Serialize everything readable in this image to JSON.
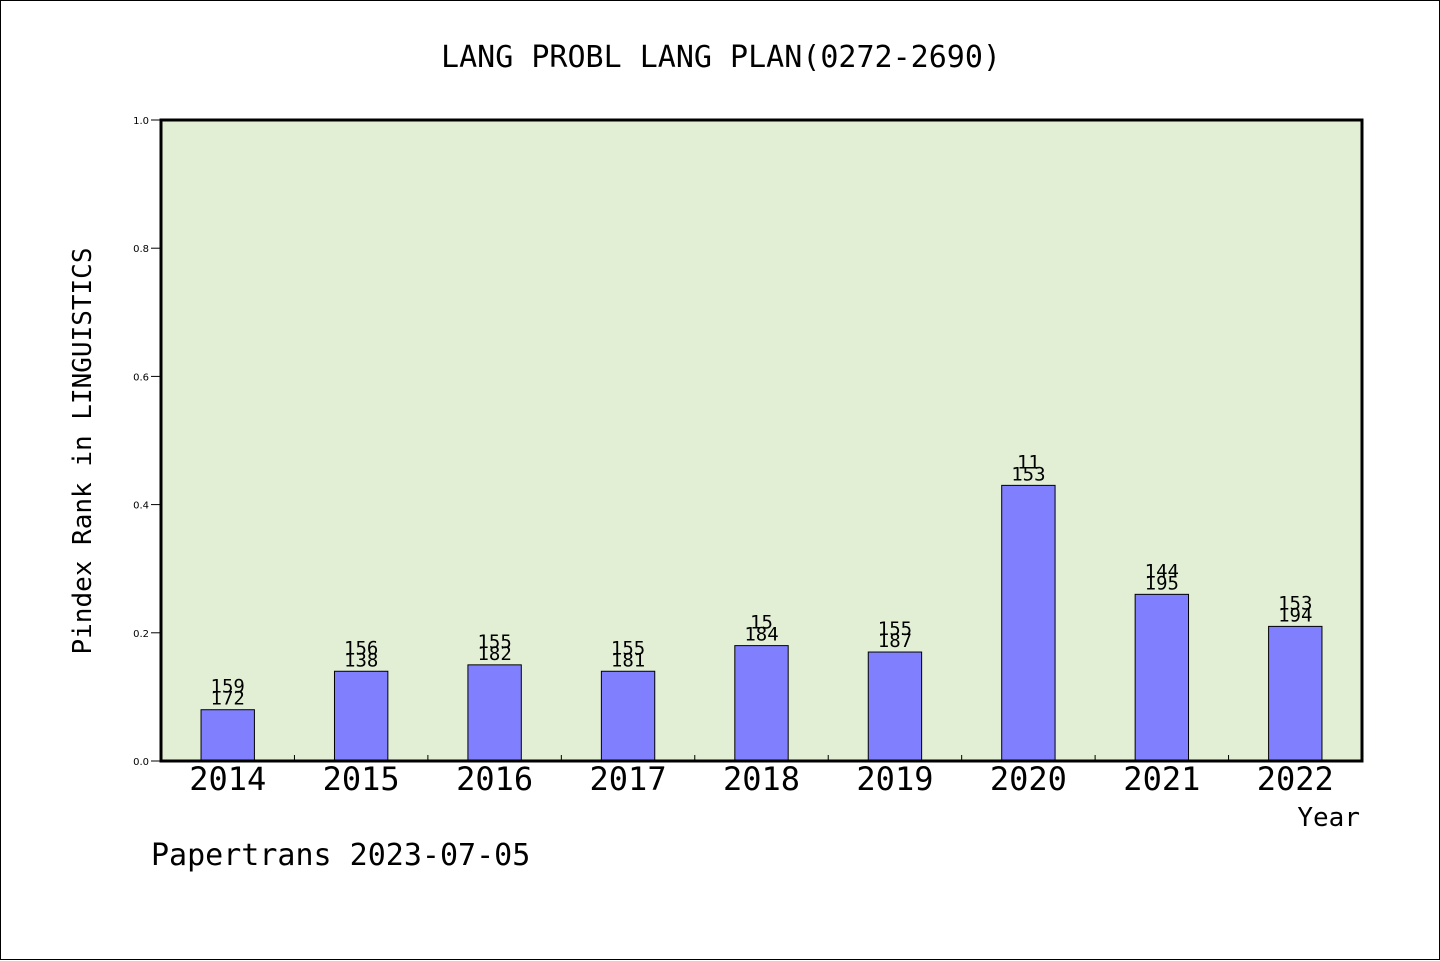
{
  "chart_data": {
    "type": "bar",
    "title": "LANG PROBL LANG PLAN(0272-2690)",
    "xlabel": "Year",
    "ylabel": "Pindex Rank in LINGUISTICS",
    "ylim": [
      0,
      1.0
    ],
    "yticks": [
      "0.0",
      "0.2",
      "0.4",
      "0.6",
      "0.8",
      "1.0"
    ],
    "categories": [
      "2014",
      "2015",
      "2016",
      "2017",
      "2018",
      "2019",
      "2020",
      "2021",
      "2022"
    ],
    "values": [
      0.08,
      0.14,
      0.15,
      0.14,
      0.18,
      0.17,
      0.43,
      0.26,
      0.21
    ],
    "labels_top": [
      "159",
      "156",
      "155",
      "155",
      "15",
      "155",
      "11",
      "144",
      "153"
    ],
    "labels_bottom": [
      "172",
      "138",
      "182",
      "181",
      "184",
      "187",
      "153",
      "195",
      "194"
    ],
    "plot_background": "#e2efd5",
    "bar_color": "#8080ff",
    "grid": false
  },
  "footer": {
    "credit": "Papertrans 2023-07-05"
  }
}
